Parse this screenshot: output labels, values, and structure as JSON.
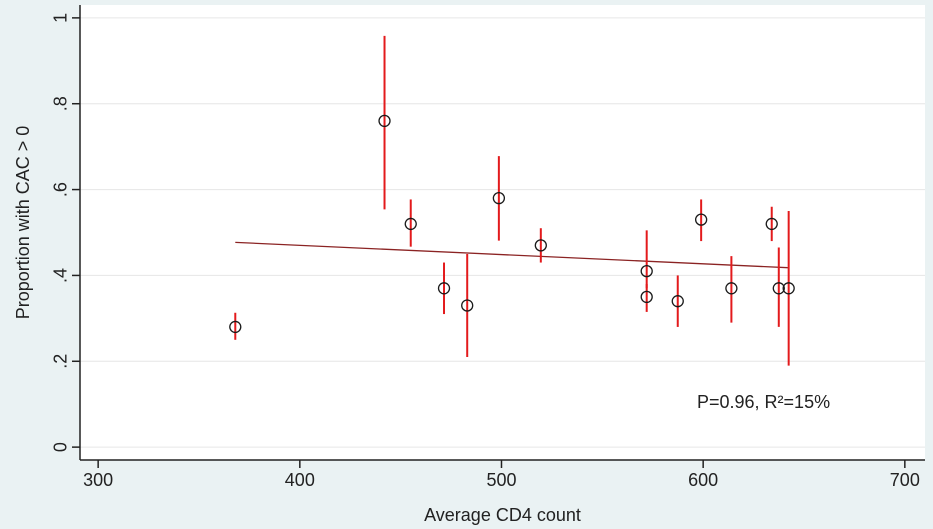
{
  "chart_data": {
    "type": "scatter",
    "xlabel": "Average CD4 count",
    "ylabel": "Proportion with CAC > 0",
    "annotation": "P=0.96, R²=15%",
    "x": [
      368,
      442,
      455,
      471.5,
      483,
      498.7,
      519.5,
      572,
      572,
      587.4,
      599,
      614,
      634,
      637.5,
      642.4
    ],
    "series": [
      {
        "values": [
          0.28,
          0.76,
          0.52,
          0.37,
          0.33,
          0.58,
          0.47,
          0.41,
          0.35,
          0.34,
          0.53,
          0.37,
          0.52,
          0.37,
          0.37
        ],
        "lower": [
          0.25,
          0.554,
          0.467,
          0.31,
          0.21,
          0.481,
          0.43,
          0.37,
          0.315,
          0.28,
          0.48,
          0.29,
          0.48,
          0.28,
          0.19
        ],
        "upper": [
          0.313,
          0.958,
          0.577,
          0.43,
          0.45,
          0.678,
          0.51,
          0.505,
          0.38,
          0.4,
          0.577,
          0.445,
          0.56,
          0.465,
          0.55
        ],
        "color": "#1a1a1a",
        "error_color": "#e31a1c"
      }
    ],
    "fit": {
      "x": [
        368,
        642
      ],
      "y": [
        0.477,
        0.418
      ],
      "color": "#8b2323"
    },
    "xlim": [
      291,
      710
    ],
    "ylim": [
      -0.03,
      1.03
    ],
    "xticks": [
      300,
      400,
      500,
      600,
      700
    ],
    "yticks": [
      0,
      {
        "value": 0.2,
        "label": ".2"
      },
      {
        "value": 0.4,
        "label": ".4"
      },
      {
        "value": 0.6,
        "label": ".6"
      },
      {
        "value": 0.8,
        "label": ".8"
      },
      1
    ],
    "grid": true
  }
}
